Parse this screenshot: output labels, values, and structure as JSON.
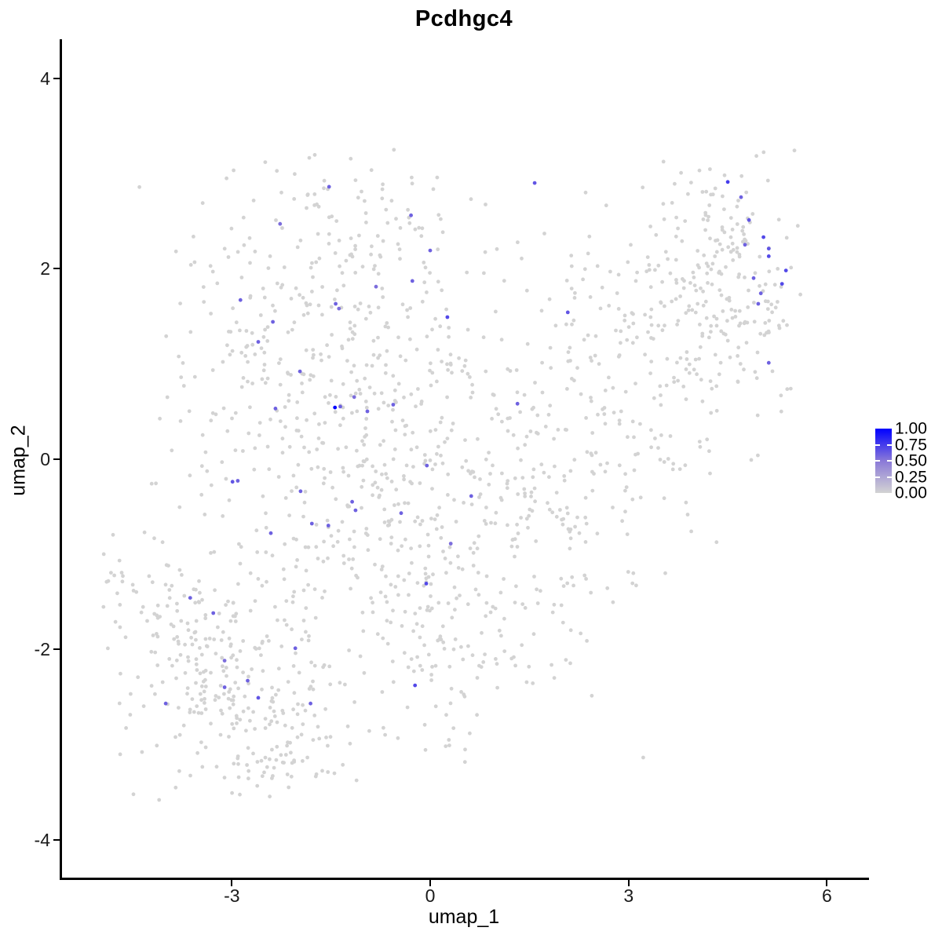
{
  "chart_data": {
    "type": "scatter",
    "title": "Pcdhgc4",
    "xlabel": "umap_1",
    "ylabel": "umap_2",
    "xlim": [
      -5.58,
      6.6
    ],
    "ylim": [
      -4.4,
      4.41
    ],
    "xticks": [
      -3,
      0,
      3,
      6
    ],
    "yticks": [
      -4,
      -2,
      0,
      2,
      4
    ],
    "grid": false,
    "point_radius": 2.4,
    "colors": {
      "background_point": "#D3D3D3",
      "gradient_low": "#D3D3D3",
      "gradient_mid": "#8A79D8",
      "gradient_high": "#0000FF",
      "axis": "#000000",
      "text": "#1a1a1a"
    },
    "legend": {
      "position": "right",
      "labels": [
        "1.00",
        "0.75",
        "0.50",
        "0.25",
        "0.00"
      ],
      "values": [
        1.0,
        0.75,
        0.5,
        0.25,
        0.0
      ],
      "tick_values": [
        0.25,
        0.5,
        0.75
      ]
    },
    "background_seed": 7,
    "background_extent": [
      -5.05,
      5.6,
      -3.6,
      3.25
    ],
    "background_clusters": [
      {
        "n": 240,
        "cx": -2.9,
        "cy": -2.3,
        "sx": 0.85,
        "sy": 0.65
      },
      {
        "n": 70,
        "cx": -3.6,
        "cy": -1.5,
        "sx": 0.5,
        "sy": 0.5
      },
      {
        "n": 330,
        "cx": -1.7,
        "cy": 1.3,
        "sx": 1.05,
        "sy": 0.85
      },
      {
        "n": 230,
        "cx": -0.6,
        "cy": -0.6,
        "sx": 1.1,
        "sy": 0.8
      },
      {
        "n": 110,
        "cx": 0.9,
        "cy": 0.2,
        "sx": 0.9,
        "sy": 1.1
      },
      {
        "n": 110,
        "cx": 2.3,
        "cy": 0.4,
        "sx": 0.8,
        "sy": 0.9
      },
      {
        "n": 110,
        "cx": 3.4,
        "cy": 1.0,
        "sx": 0.7,
        "sy": 0.9
      },
      {
        "n": 150,
        "cx": 4.7,
        "cy": 1.9,
        "sx": 0.55,
        "sy": 0.65
      },
      {
        "n": 12,
        "cx": -4.75,
        "cy": -1.2,
        "sx": 0.15,
        "sy": 0.2
      },
      {
        "n": 50,
        "cx": -2.3,
        "cy": -3.05,
        "sx": 0.55,
        "sy": 0.3
      },
      {
        "n": 50,
        "cx": -1.2,
        "cy": 2.6,
        "sx": 0.9,
        "sy": 0.3
      },
      {
        "n": 90,
        "cx": 0.2,
        "cy": -1.9,
        "sx": 0.8,
        "sy": 0.6
      },
      {
        "n": 60,
        "cx": 1.9,
        "cy": -0.9,
        "sx": 0.7,
        "sy": 0.7
      },
      {
        "n": 60,
        "cx": 3.9,
        "cy": 1.9,
        "sx": 0.5,
        "sy": 0.45
      }
    ],
    "expressing_points": [
      [
        -1.53,
        2.86,
        0.6
      ],
      [
        1.58,
        2.9,
        0.65
      ],
      [
        -0.29,
        2.56,
        0.6
      ],
      [
        -2.27,
        2.47,
        0.55
      ],
      [
        0.0,
        2.19,
        0.6
      ],
      [
        -2.87,
        1.67,
        0.6
      ],
      [
        -0.27,
        1.87,
        0.6
      ],
      [
        -0.82,
        1.81,
        0.55
      ],
      [
        -1.43,
        1.63,
        0.6
      ],
      [
        -1.38,
        1.58,
        0.55
      ],
      [
        -2.38,
        1.44,
        0.6
      ],
      [
        0.26,
        1.49,
        0.7
      ],
      [
        2.08,
        1.54,
        0.65
      ],
      [
        -2.6,
        1.23,
        0.6
      ],
      [
        -1.97,
        0.92,
        0.6
      ],
      [
        -1.15,
        0.65,
        0.55
      ],
      [
        -1.44,
        0.54,
        1.0
      ],
      [
        -1.36,
        0.55,
        0.6
      ],
      [
        -0.95,
        0.5,
        0.6
      ],
      [
        -0.56,
        0.57,
        0.6
      ],
      [
        -2.34,
        0.53,
        0.6
      ],
      [
        1.32,
        0.58,
        0.6
      ],
      [
        4.5,
        2.91,
        0.75
      ],
      [
        4.7,
        2.75,
        0.6
      ],
      [
        4.82,
        2.51,
        0.65
      ],
      [
        5.04,
        2.33,
        0.7
      ],
      [
        4.76,
        2.25,
        0.6
      ],
      [
        5.12,
        2.21,
        0.65
      ],
      [
        5.12,
        2.13,
        0.7
      ],
      [
        5.38,
        1.98,
        0.7
      ],
      [
        4.89,
        1.9,
        0.6
      ],
      [
        5.32,
        1.84,
        0.7
      ],
      [
        5.0,
        1.74,
        0.6
      ],
      [
        4.96,
        1.63,
        0.6
      ],
      [
        5.12,
        1.01,
        0.6
      ],
      [
        -0.05,
        -0.07,
        0.6
      ],
      [
        -2.99,
        -0.24,
        0.65
      ],
      [
        -2.91,
        -0.23,
        0.6
      ],
      [
        -1.96,
        -0.34,
        0.6
      ],
      [
        0.62,
        -0.39,
        0.6
      ],
      [
        -1.18,
        -0.45,
        0.6
      ],
      [
        -1.13,
        -0.54,
        0.6
      ],
      [
        -0.44,
        -0.57,
        0.6
      ],
      [
        -1.79,
        -0.68,
        0.6
      ],
      [
        -1.54,
        -0.7,
        0.6
      ],
      [
        -2.41,
        -0.78,
        0.6
      ],
      [
        0.31,
        -0.89,
        0.55
      ],
      [
        -0.06,
        -1.31,
        0.7
      ],
      [
        -3.63,
        -1.46,
        0.6
      ],
      [
        -3.28,
        -1.62,
        0.6
      ],
      [
        -2.04,
        -1.99,
        0.6
      ],
      [
        -3.11,
        -2.12,
        0.55
      ],
      [
        -2.76,
        -2.33,
        0.6
      ],
      [
        -3.11,
        -2.4,
        0.6
      ],
      [
        -2.6,
        -2.51,
        0.65
      ],
      [
        -4.0,
        -2.57,
        0.6
      ],
      [
        -1.81,
        -2.57,
        0.6
      ],
      [
        -0.23,
        -2.38,
        0.7
      ]
    ]
  }
}
